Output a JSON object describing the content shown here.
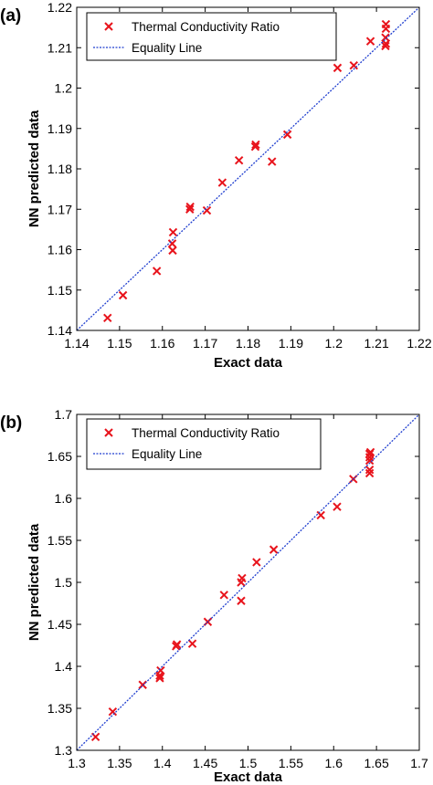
{
  "chart_data": [
    {
      "type": "scatter",
      "panel_label": "(a)",
      "xlabel": "Exact data",
      "ylabel": "NN predicted data",
      "xlim": [
        1.14,
        1.22
      ],
      "ylim": [
        1.14,
        1.22
      ],
      "x_ticks": [
        "1.14",
        "1.15",
        "1.16",
        "1.17",
        "1.18",
        "1.19",
        "1.2",
        "1.21",
        "1.22"
      ],
      "y_ticks": [
        "1.14",
        "1.15",
        "1.16",
        "1.17",
        "1.18",
        "1.19",
        "1.2",
        "1.21",
        "1.22"
      ],
      "legend_position": "top-left",
      "grid": false,
      "series": [
        {
          "name": "Thermal Conductivity Ratio",
          "marker": "x",
          "color": "#e8141c",
          "points": [
            [
              1.1472,
              1.1431
            ],
            [
              1.1508,
              1.1487
            ],
            [
              1.1587,
              1.1547
            ],
            [
              1.1624,
              1.1598
            ],
            [
              1.1623,
              1.1615
            ],
            [
              1.1625,
              1.1643
            ],
            [
              1.1664,
              1.17
            ],
            [
              1.1665,
              1.1706
            ],
            [
              1.1704,
              1.1697
            ],
            [
              1.174,
              1.1766
            ],
            [
              1.1779,
              1.1821
            ],
            [
              1.1817,
              1.1855
            ],
            [
              1.1818,
              1.186
            ],
            [
              1.1856,
              1.1818
            ],
            [
              1.1892,
              1.1885
            ],
            [
              1.2009,
              1.205
            ],
            [
              1.2047,
              1.2056
            ],
            [
              1.2086,
              1.2116
            ],
            [
              1.2121,
              1.2104
            ],
            [
              1.2122,
              1.211
            ],
            [
              1.2121,
              1.2125
            ],
            [
              1.2122,
              1.2147
            ],
            [
              1.2122,
              1.2158
            ]
          ]
        },
        {
          "name": "Equality Line",
          "type": "line",
          "style": "dotted",
          "color": "#1f3ecf",
          "points": [
            [
              1.14,
              1.14
            ],
            [
              1.22,
              1.22
            ]
          ]
        }
      ]
    },
    {
      "type": "scatter",
      "panel_label": "(b)",
      "xlabel": "Exact data",
      "ylabel": "NN predicted data",
      "xlim": [
        1.3,
        1.7
      ],
      "ylim": [
        1.3,
        1.7
      ],
      "x_ticks": [
        "1.3",
        "1.35",
        "1.4",
        "1.45",
        "1.5",
        "1.55",
        "1.6",
        "1.65",
        "1.7"
      ],
      "y_ticks": [
        "1.3",
        "1.35",
        "1.4",
        "1.45",
        "1.5",
        "1.55",
        "1.6",
        "1.65",
        "1.7"
      ],
      "legend_position": "top-left",
      "grid": false,
      "series": [
        {
          "name": "Thermal Conductivity Ratio",
          "marker": "x",
          "color": "#e8141c",
          "points": [
            [
              1.322,
              1.316
            ],
            [
              1.342,
              1.346
            ],
            [
              1.377,
              1.378
            ],
            [
              1.397,
              1.386
            ],
            [
              1.397,
              1.389
            ],
            [
              1.398,
              1.395
            ],
            [
              1.416,
              1.424
            ],
            [
              1.417,
              1.426
            ],
            [
              1.435,
              1.427
            ],
            [
              1.453,
              1.453
            ],
            [
              1.472,
              1.485
            ],
            [
              1.492,
              1.478
            ],
            [
              1.492,
              1.5
            ],
            [
              1.493,
              1.505
            ],
            [
              1.51,
              1.524
            ],
            [
              1.53,
              1.539
            ],
            [
              1.585,
              1.58
            ],
            [
              1.604,
              1.59
            ],
            [
              1.623,
              1.623
            ],
            [
              1.642,
              1.63
            ],
            [
              1.642,
              1.634
            ],
            [
              1.642,
              1.645
            ],
            [
              1.642,
              1.649
            ],
            [
              1.642,
              1.653
            ],
            [
              1.643,
              1.655
            ]
          ]
        },
        {
          "name": "Equality Line",
          "type": "line",
          "style": "dotted",
          "color": "#1f3ecf",
          "points": [
            [
              1.3,
              1.3
            ],
            [
              1.7,
              1.7
            ]
          ]
        }
      ]
    }
  ]
}
